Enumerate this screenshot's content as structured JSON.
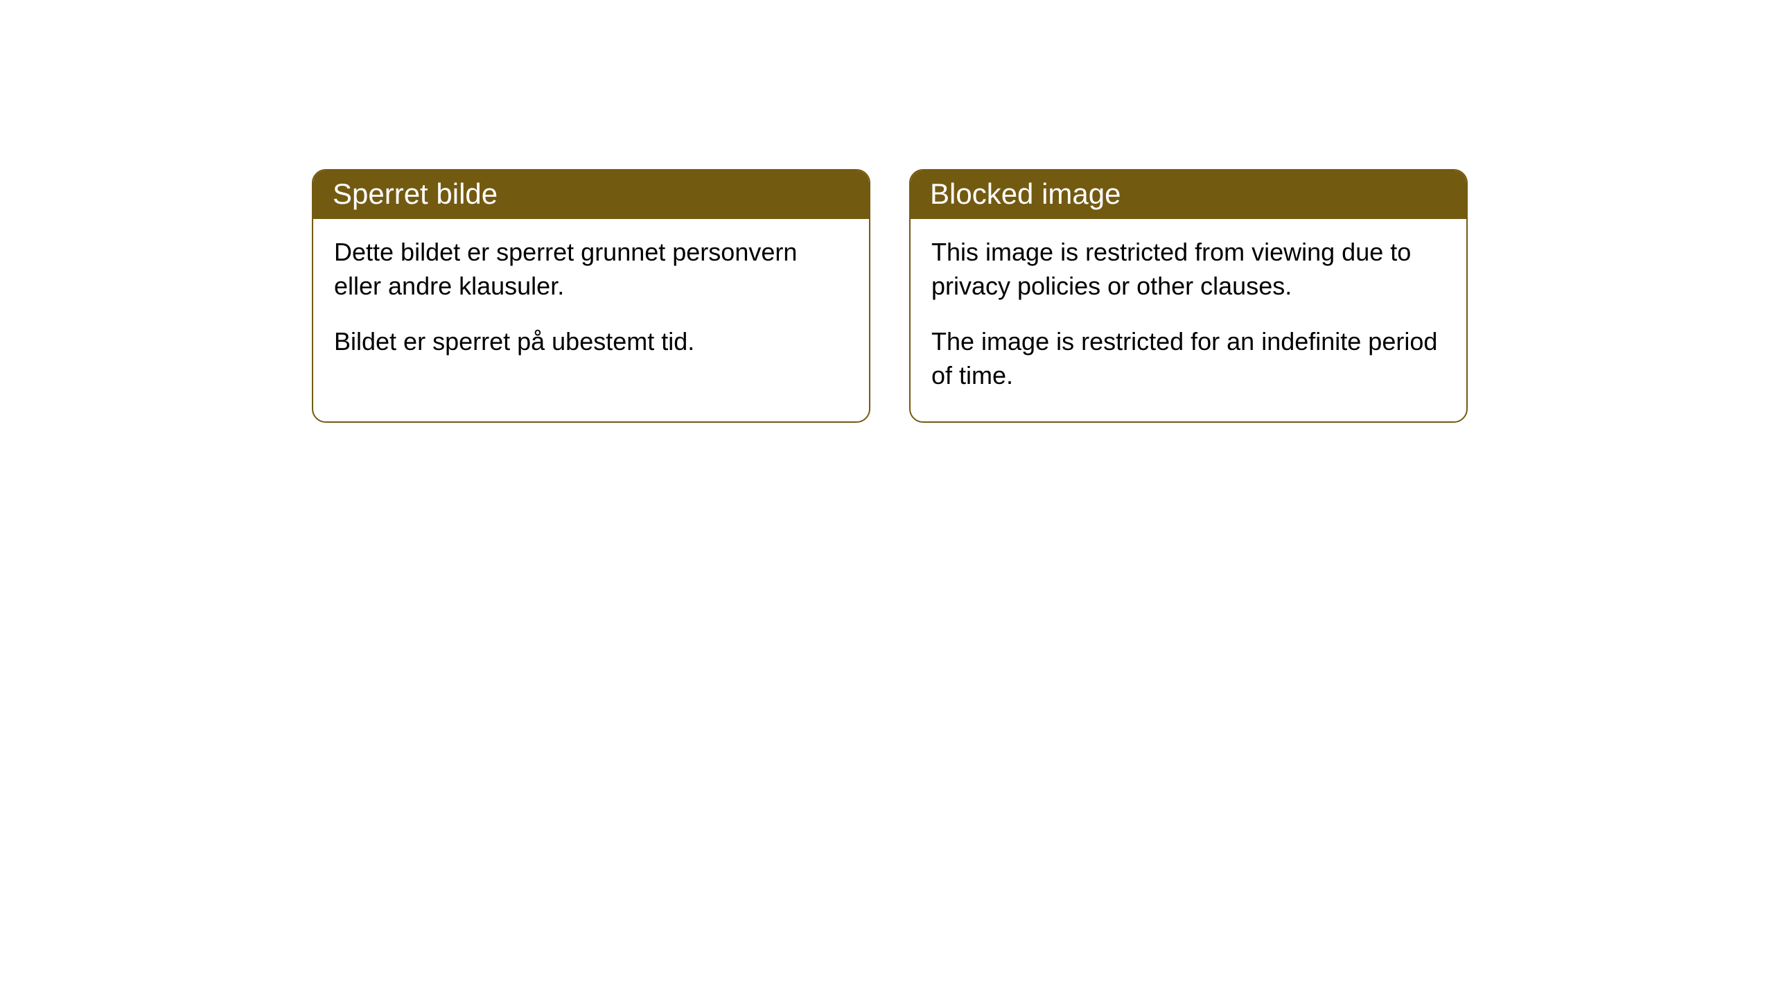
{
  "cards": [
    {
      "title": "Sperret bilde",
      "paragraph1": "Dette bildet er sperret grunnet personvern eller andre klausuler.",
      "paragraph2": "Bildet er sperret på ubestemt tid."
    },
    {
      "title": "Blocked image",
      "paragraph1": "This image is restricted from viewing due to privacy policies or other clauses.",
      "paragraph2": "The image is restricted for an indefinite period of time."
    }
  ],
  "styling": {
    "header_bg_color": "#735a11",
    "header_text_color": "#ffffff",
    "border_color": "#735a11",
    "body_bg_color": "#ffffff",
    "body_text_color": "#000000",
    "border_radius": 20,
    "header_fontsize": 42,
    "body_fontsize": 36
  }
}
